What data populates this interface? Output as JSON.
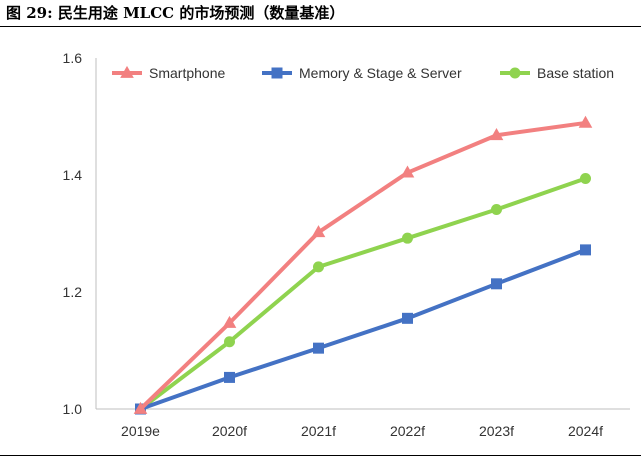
{
  "figure": {
    "title": "图 29: 民生用途 MLCC 的市场预测（数量基准）"
  },
  "chart_data": {
    "type": "line",
    "categories": [
      "2019e",
      "2020f",
      "2021f",
      "2022f",
      "2023f",
      "2024f"
    ],
    "ylim": [
      1.0,
      1.6
    ],
    "yticks": [
      "1.0",
      "1.2",
      "1.4",
      "1.6"
    ],
    "ytick_values": [
      1.0,
      1.2,
      1.4,
      1.6
    ],
    "grid": false,
    "legend_position": "top",
    "series": [
      {
        "name": "Smartphone",
        "values": [
          1.0,
          1.147,
          1.302,
          1.404,
          1.468,
          1.489
        ],
        "color": "#f28080",
        "marker": "triangle"
      },
      {
        "name": "Memory & Stage & Server",
        "values": [
          1.0,
          1.054,
          1.104,
          1.155,
          1.214,
          1.272
        ],
        "color": "#4472c4",
        "marker": "square"
      },
      {
        "name": "Base station",
        "values": [
          1.0,
          1.115,
          1.243,
          1.292,
          1.341,
          1.394
        ],
        "color": "#8fd34f",
        "marker": "circle"
      }
    ]
  }
}
